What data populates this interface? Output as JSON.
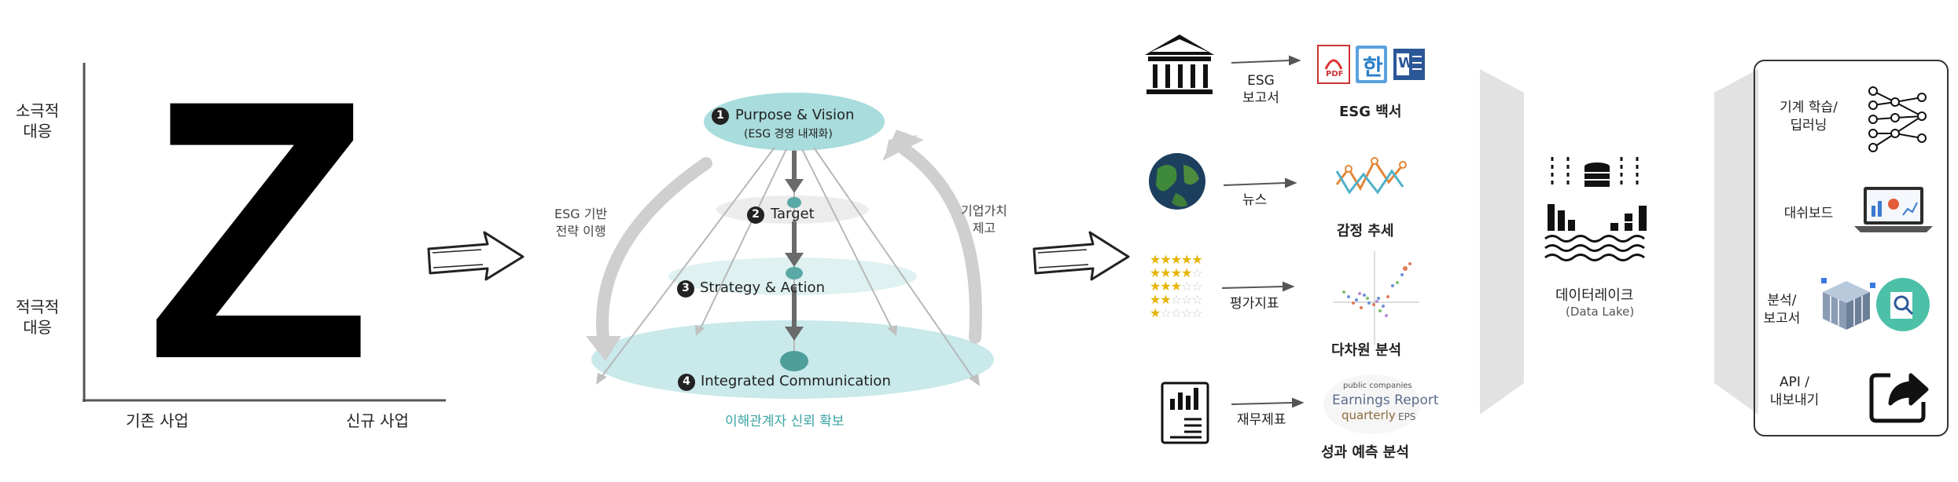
{
  "matrix": {
    "y_top": [
      "소극적",
      "대응"
    ],
    "y_bottom": [
      "적극적",
      "대응"
    ],
    "letter": "Z",
    "x_left": "기존 사업",
    "x_right": "신규 사업"
  },
  "pyramid": {
    "levels": [
      {
        "num": "1",
        "title": "Purpose & Vision",
        "subtitle": "(ESG 경영 내재화)"
      },
      {
        "num": "2",
        "title": "Target"
      },
      {
        "num": "3",
        "title": "Strategy & Action"
      },
      {
        "num": "4",
        "title": "Integrated Communication"
      }
    ],
    "left_arc": [
      "ESG 기반",
      "전략 이행"
    ],
    "right_arc": [
      "기업가치",
      "제고"
    ],
    "footer": "이해관계자 신뢰 확보"
  },
  "sources": [
    {
      "icon": "bank-icon",
      "label": [
        "ESG",
        "보고서"
      ],
      "output": "ESG 백서",
      "output_icons": [
        "pdf-icon",
        "hwp-icon",
        "word-icon"
      ],
      "pdf_text": "PDF",
      "hwp_text": "한",
      "word_text": "W"
    },
    {
      "icon": "globe-icon",
      "label": [
        "뉴스"
      ],
      "output": "감정 추세",
      "output_icon": "line-chart-icon"
    },
    {
      "icon": "stars-icon",
      "label": [
        "평가지표"
      ],
      "output": "다차원 분석",
      "output_icon": "scatter-plot-icon"
    },
    {
      "icon": "financial-report-icon",
      "label": [
        "재무제표"
      ],
      "output": "성과 예측 분석",
      "output_icon": "word-cloud-icon",
      "cloud_words": [
        "public companies",
        "Earnings Report",
        "quarterly",
        "EPS"
      ]
    }
  ],
  "datalake": {
    "icon": "database-icon",
    "title": "데이터레이크",
    "subtitle": "(Data Lake)"
  },
  "applications": [
    {
      "label": [
        "기계 학습/",
        "딥러닝"
      ],
      "icon": "neural-network-icon"
    },
    {
      "label": [
        "대쉬보드"
      ],
      "icon": "dashboard-laptop-icon"
    },
    {
      "label": [
        "분석/",
        "보고서"
      ],
      "icon": "data-cube-analysis-icon"
    },
    {
      "label": [
        "API /",
        "내보내기"
      ],
      "icon": "export-share-icon"
    }
  ],
  "colors": {
    "teal": "#9fd6d6",
    "teal_dark": "#5aa9a6",
    "teal_text": "#3aa3a3",
    "arrow_gray": "#bfbfbf",
    "funnel": "#e2e2e2"
  }
}
